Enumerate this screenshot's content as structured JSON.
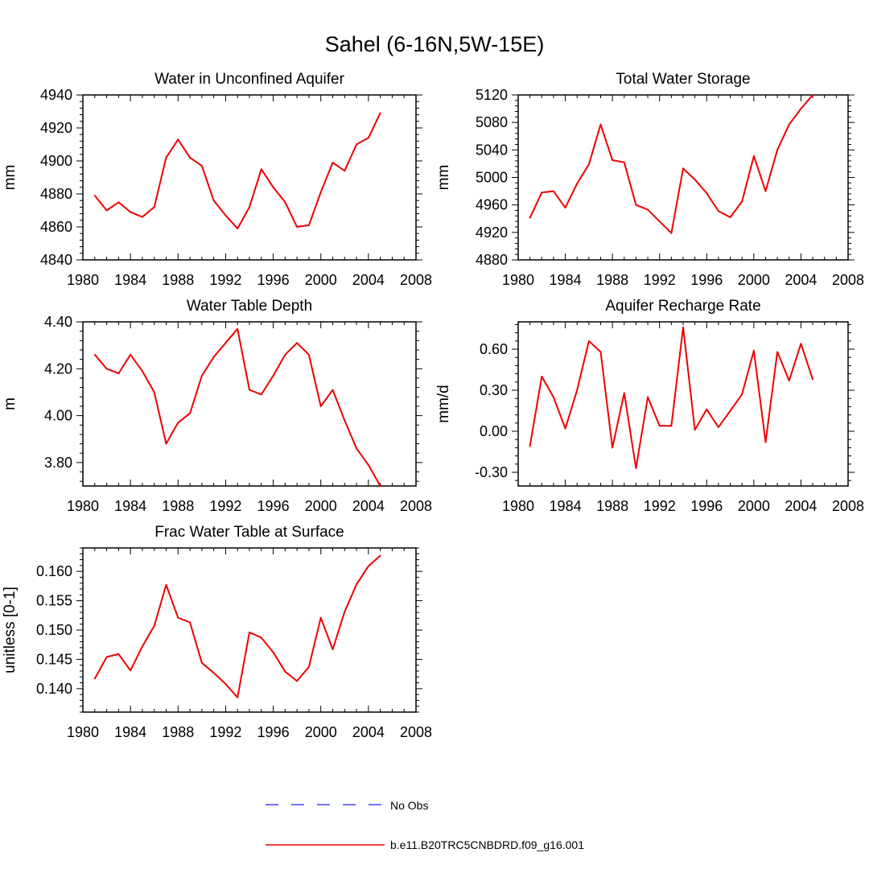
{
  "figure": {
    "title": "Sahel (6-16N,5W-15E)"
  },
  "colors": {
    "model_line": "#ee0000",
    "obs_line": "#2222ff",
    "axis": "#000000"
  },
  "legend": {
    "items": [
      {
        "label": "No Obs",
        "style": "dashed",
        "color": "#2222ff"
      },
      {
        "label": "b.e11.B20TRC5CNBDRD.f09_g16.001",
        "style": "solid",
        "color": "#ee0000"
      }
    ]
  },
  "chart_data": [
    {
      "id": "aquifer",
      "type": "line",
      "title": "Water in Unconfined Aquifer",
      "xlabel": "",
      "ylabel": "mm",
      "xlim": [
        1980,
        2008
      ],
      "ylim": [
        4840,
        4940
      ],
      "xticks": [
        1980,
        1984,
        1988,
        1992,
        1996,
        2000,
        2004,
        2008
      ],
      "yticks": [
        4840,
        4860,
        4880,
        4900,
        4920,
        4940
      ],
      "ytick_labels": [
        "4840",
        "4860",
        "4880",
        "4900",
        "4920",
        "4940"
      ],
      "x": [
        1981,
        1982,
        1983,
        1984,
        1985,
        1986,
        1987,
        1988,
        1989,
        1990,
        1991,
        1992,
        1993,
        1994,
        1995,
        1996,
        1997,
        1998,
        1999,
        2000,
        2001,
        2002,
        2003,
        2004,
        2005
      ],
      "series": [
        {
          "name": "b.e11.B20TRC5CNBDRD.f09_g16.001",
          "values": [
            4879,
            4870,
            4875,
            4869,
            4866,
            4872,
            4902,
            4913,
            4902,
            4897,
            4876,
            4867,
            4859,
            4872,
            4895,
            4884,
            4875,
            4860,
            4861,
            4881,
            4899,
            4894,
            4910,
            4914,
            4929
          ]
        }
      ]
    },
    {
      "id": "tws",
      "type": "line",
      "title": "Total Water Storage",
      "xlabel": "",
      "ylabel": "mm",
      "xlim": [
        1980,
        2008
      ],
      "ylim": [
        4880,
        5120
      ],
      "xticks": [
        1980,
        1984,
        1988,
        1992,
        1996,
        2000,
        2004,
        2008
      ],
      "yticks": [
        4880,
        4920,
        4960,
        5000,
        5040,
        5080,
        5120
      ],
      "ytick_labels": [
        "4880",
        "4920",
        "4960",
        "5000",
        "5040",
        "5080",
        "5120"
      ],
      "x": [
        1981,
        1982,
        1983,
        1984,
        1985,
        1986,
        1987,
        1988,
        1989,
        1990,
        1991,
        1992,
        1993,
        1994,
        1995,
        1996,
        1997,
        1998,
        1999,
        2000,
        2001,
        2002,
        2003,
        2004,
        2005
      ],
      "series": [
        {
          "name": "b.e11.B20TRC5CNBDRD.f09_g16.001",
          "values": [
            4941,
            4978,
            4980,
            4956,
            4991,
            5019,
            5077,
            5025,
            5022,
            4960,
            4953,
            4936,
            4919,
            5013,
            4997,
            4977,
            4951,
            4942,
            4965,
            5031,
            4980,
            5040,
            5077,
            5100,
            5120
          ]
        }
      ]
    },
    {
      "id": "wtd",
      "type": "line",
      "title": "Water Table Depth",
      "xlabel": "",
      "ylabel": "m",
      "xlim": [
        1980,
        2008
      ],
      "ylim": [
        3.7,
        4.4
      ],
      "xticks": [
        1980,
        1984,
        1988,
        1992,
        1996,
        2000,
        2004,
        2008
      ],
      "yticks": [
        3.8,
        4.0,
        4.2,
        4.4
      ],
      "ytick_labels": [
        "3.80",
        "4.00",
        "4.20",
        "4.40"
      ],
      "x": [
        1981,
        1982,
        1983,
        1984,
        1985,
        1986,
        1987,
        1988,
        1989,
        1990,
        1991,
        1992,
        1993,
        1994,
        1995,
        1996,
        1997,
        1998,
        1999,
        2000,
        2001,
        2002,
        2003,
        2004,
        2005
      ],
      "series": [
        {
          "name": "b.e11.B20TRC5CNBDRD.f09_g16.001",
          "values": [
            4.26,
            4.2,
            4.18,
            4.26,
            4.19,
            4.1,
            3.88,
            3.97,
            4.01,
            4.17,
            4.25,
            4.31,
            4.37,
            4.11,
            4.09,
            4.17,
            4.26,
            4.31,
            4.26,
            4.04,
            4.11,
            3.98,
            3.86,
            3.79,
            3.7
          ]
        }
      ]
    },
    {
      "id": "recharge",
      "type": "line",
      "title": "Aquifer Recharge Rate",
      "xlabel": "",
      "ylabel": "mm/d",
      "xlim": [
        1980,
        2008
      ],
      "ylim": [
        -0.4,
        0.8
      ],
      "xticks": [
        1980,
        1984,
        1988,
        1992,
        1996,
        2000,
        2004,
        2008
      ],
      "yticks": [
        -0.3,
        0.0,
        0.3,
        0.6
      ],
      "ytick_labels": [
        "-0.30",
        "0.00",
        "0.30",
        "0.60"
      ],
      "x": [
        1981,
        1982,
        1983,
        1984,
        1985,
        1986,
        1987,
        1988,
        1989,
        1990,
        1991,
        1992,
        1993,
        1994,
        1995,
        1996,
        1997,
        1998,
        1999,
        2000,
        2001,
        2002,
        2003,
        2004,
        2005
      ],
      "series": [
        {
          "name": "b.e11.B20TRC5CNBDRD.f09_g16.001",
          "values": [
            -0.11,
            0.4,
            0.25,
            0.02,
            0.3,
            0.66,
            0.58,
            -0.12,
            0.28,
            -0.27,
            0.25,
            0.04,
            0.04,
            0.76,
            0.01,
            0.16,
            0.03,
            0.15,
            0.27,
            0.59,
            -0.08,
            0.58,
            0.37,
            0.64,
            0.38
          ]
        }
      ]
    },
    {
      "id": "fracwt",
      "type": "line",
      "title": "Frac Water Table at Surface",
      "xlabel": "",
      "ylabel": "unitless [0-1]",
      "xlim": [
        1980,
        2008
      ],
      "ylim": [
        0.136,
        0.164
      ],
      "xticks": [
        1980,
        1984,
        1988,
        1992,
        1996,
        2000,
        2004,
        2008
      ],
      "yticks": [
        0.14,
        0.145,
        0.15,
        0.155,
        0.16
      ],
      "ytick_labels": [
        "0.140",
        "0.145",
        "0.150",
        "0.155",
        "0.160"
      ],
      "x": [
        1981,
        1982,
        1983,
        1984,
        1985,
        1986,
        1987,
        1988,
        1989,
        1990,
        1991,
        1992,
        1993,
        1994,
        1995,
        1996,
        1997,
        1998,
        1999,
        2000,
        2001,
        2002,
        2003,
        2004,
        2005
      ],
      "series": [
        {
          "name": "b.e11.B20TRC5CNBDRD.f09_g16.001",
          "values": [
            0.1417,
            0.1454,
            0.1459,
            0.1431,
            0.1472,
            0.1507,
            0.1577,
            0.1521,
            0.1513,
            0.1444,
            0.1427,
            0.1408,
            0.1385,
            0.1496,
            0.1487,
            0.1462,
            0.1429,
            0.1413,
            0.1437,
            0.1521,
            0.1467,
            0.1531,
            0.1578,
            0.1609,
            0.1627
          ]
        }
      ]
    }
  ]
}
